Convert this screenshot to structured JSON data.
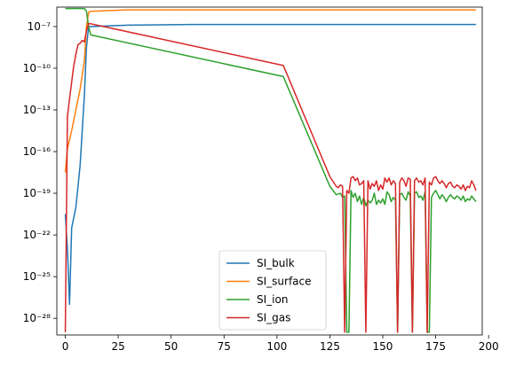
{
  "chart_data": {
    "type": "line",
    "yscale": "log",
    "xlim": [
      -4,
      197
    ],
    "ylim_exp": [
      -29.2,
      -5.6
    ],
    "x_ticks": [
      0,
      25,
      50,
      75,
      100,
      125,
      150,
      175,
      200
    ],
    "y_ticks": [
      {
        "exp": -28,
        "label": "10⁻²⁸"
      },
      {
        "exp": -25,
        "label": "10⁻²⁵"
      },
      {
        "exp": -22,
        "label": "10⁻²²"
      },
      {
        "exp": -19,
        "label": "10⁻¹⁹"
      },
      {
        "exp": -16,
        "label": "10⁻¹⁶"
      },
      {
        "exp": -13,
        "label": "10⁻¹³"
      },
      {
        "exp": -10,
        "label": "10⁻¹⁰"
      },
      {
        "exp": -7,
        "label": "10⁻⁷"
      }
    ],
    "grid": false,
    "legend_position": "lower-center",
    "series": [
      {
        "name": "SI_bulk",
        "color": "#1f77b4",
        "points": [
          [
            0,
            -20.5
          ],
          [
            1,
            -23
          ],
          [
            2,
            -27
          ],
          [
            3,
            -21.5
          ],
          [
            5,
            -20
          ],
          [
            7,
            -17
          ],
          [
            9,
            -12
          ],
          [
            10,
            -8.5
          ],
          [
            11,
            -7
          ],
          [
            12,
            -7
          ],
          [
            30,
            -6.9
          ],
          [
            60,
            -6.85
          ],
          [
            100,
            -6.85
          ],
          [
            150,
            -6.85
          ],
          [
            194,
            -6.85
          ]
        ]
      },
      {
        "name": "SI_surface",
        "color": "#ff7f0e",
        "points": [
          [
            0,
            -17.5
          ],
          [
            1,
            -15.8
          ],
          [
            3,
            -14.5
          ],
          [
            5,
            -13
          ],
          [
            7,
            -11.5
          ],
          [
            9,
            -9.5
          ],
          [
            10,
            -7
          ],
          [
            11,
            -6
          ],
          [
            12,
            -5.9
          ],
          [
            30,
            -5.8
          ],
          [
            194,
            -5.8
          ]
        ]
      },
      {
        "name": "SI_ion",
        "color": "#2ca02c",
        "points": [
          [
            0,
            -5.7
          ],
          [
            9,
            -5.7
          ],
          [
            10,
            -5.9
          ],
          [
            11,
            -7
          ],
          [
            12,
            -7.6
          ],
          [
            103,
            -10.6
          ],
          [
            125,
            -18.5
          ],
          [
            128,
            -19.1
          ],
          [
            130,
            -19
          ],
          [
            131,
            -19.3
          ],
          [
            132,
            -19.2
          ],
          [
            133,
            -29
          ],
          [
            134,
            -29
          ],
          [
            135,
            -18.8
          ],
          [
            136,
            -19.3
          ],
          [
            137,
            -19
          ],
          [
            138,
            -19.6
          ],
          [
            139,
            -19.2
          ],
          [
            140,
            -19.8
          ],
          [
            141,
            -19.3
          ],
          [
            142,
            -19.9
          ],
          [
            143,
            -19.5
          ],
          [
            144,
            -19.7
          ],
          [
            145,
            -19.5
          ],
          [
            146,
            -19
          ],
          [
            147,
            -19.8
          ],
          [
            148,
            -19.5
          ],
          [
            149,
            -19.7
          ],
          [
            150,
            -19.4
          ],
          [
            151,
            -19.8
          ],
          [
            152,
            -18.9
          ],
          [
            153,
            -19.1
          ],
          [
            154,
            -19.6
          ],
          [
            155,
            -19.3
          ],
          [
            156,
            -19.5
          ],
          [
            157,
            -29
          ],
          [
            158,
            -19.1
          ],
          [
            159,
            -19
          ],
          [
            160,
            -19.3
          ],
          [
            161,
            -19.5
          ],
          [
            162,
            -18.9
          ],
          [
            163,
            -19.2
          ],
          [
            164,
            -29
          ],
          [
            165,
            -19
          ],
          [
            166,
            -18.9
          ],
          [
            167,
            -19.3
          ],
          [
            168,
            -19.2
          ],
          [
            169,
            -19.5
          ],
          [
            170,
            -18.9
          ],
          [
            171,
            -29
          ],
          [
            172,
            -29
          ],
          [
            173,
            -19.3
          ],
          [
            174,
            -19
          ],
          [
            175,
            -18.8
          ],
          [
            176,
            -19.1
          ],
          [
            177,
            -19.4
          ],
          [
            178,
            -19.1
          ],
          [
            179,
            -19.3
          ],
          [
            180,
            -19.6
          ],
          [
            181,
            -19.3
          ],
          [
            182,
            -19.1
          ],
          [
            183,
            -19.3
          ],
          [
            184,
            -19.4
          ],
          [
            185,
            -19.2
          ],
          [
            186,
            -19.3
          ],
          [
            187,
            -19.5
          ],
          [
            188,
            -19.2
          ],
          [
            189,
            -19.6
          ],
          [
            190,
            -19.4
          ],
          [
            191,
            -19.5
          ],
          [
            192,
            -19.2
          ],
          [
            194,
            -19.6
          ]
        ]
      },
      {
        "name": "SI_gas",
        "color": "#d62728",
        "points": [
          [
            0,
            -29
          ],
          [
            1,
            -13.5
          ],
          [
            2,
            -12.2
          ],
          [
            3,
            -11
          ],
          [
            4,
            -9.8
          ],
          [
            5,
            -9
          ],
          [
            6,
            -8.3
          ],
          [
            7,
            -8.2
          ],
          [
            8,
            -8
          ],
          [
            9,
            -8.1
          ],
          [
            10,
            -7.3
          ],
          [
            11,
            -6.8
          ],
          [
            12,
            -6.8
          ],
          [
            103,
            -9.8
          ],
          [
            125,
            -17.8
          ],
          [
            128,
            -18.5
          ],
          [
            129,
            -18.6
          ],
          [
            130,
            -18.4
          ],
          [
            131,
            -18.5
          ],
          [
            132,
            -29
          ],
          [
            133,
            -18.8
          ],
          [
            134,
            -19
          ],
          [
            135,
            -17.9
          ],
          [
            136,
            -17.8
          ],
          [
            137,
            -18.1
          ],
          [
            138,
            -17.9
          ],
          [
            139,
            -18.4
          ],
          [
            140,
            -18.3
          ],
          [
            141,
            -18.1
          ],
          [
            142,
            -29
          ],
          [
            143,
            -18.1
          ],
          [
            144,
            -18.7
          ],
          [
            145,
            -18.3
          ],
          [
            146,
            -18.5
          ],
          [
            147,
            -18.1
          ],
          [
            148,
            -18.8
          ],
          [
            149,
            -18.4
          ],
          [
            150,
            -18.7
          ],
          [
            151,
            -17.9
          ],
          [
            152,
            -18.2
          ],
          [
            153,
            -17.9
          ],
          [
            154,
            -18.4
          ],
          [
            155,
            -18.1
          ],
          [
            156,
            -18.3
          ],
          [
            157,
            -29
          ],
          [
            158,
            -18.2
          ],
          [
            159,
            -17.9
          ],
          [
            160,
            -18.1
          ],
          [
            161,
            -18.5
          ],
          [
            162,
            -17.9
          ],
          [
            163,
            -18
          ],
          [
            164,
            -29
          ],
          [
            165,
            -18.1
          ],
          [
            166,
            -17.9
          ],
          [
            167,
            -18.2
          ],
          [
            168,
            -18.1
          ],
          [
            169,
            -18.4
          ],
          [
            170,
            -17.9
          ],
          [
            171,
            -29
          ],
          [
            172,
            -18.2
          ],
          [
            173,
            -18.4
          ],
          [
            174,
            -17.9
          ],
          [
            175,
            -17.8
          ],
          [
            176,
            -18.1
          ],
          [
            177,
            -18.3
          ],
          [
            178,
            -18.1
          ],
          [
            179,
            -18.3
          ],
          [
            180,
            -18.6
          ],
          [
            181,
            -18.3
          ],
          [
            182,
            -18.2
          ],
          [
            183,
            -18.5
          ],
          [
            184,
            -18.6
          ],
          [
            185,
            -18.4
          ],
          [
            186,
            -18.5
          ],
          [
            187,
            -18.7
          ],
          [
            188,
            -18.4
          ],
          [
            189,
            -18.8
          ],
          [
            190,
            -18.5
          ],
          [
            191,
            -18.6
          ],
          [
            192,
            -18.1
          ],
          [
            193,
            -18.4
          ],
          [
            194,
            -18.8
          ]
        ]
      }
    ]
  }
}
